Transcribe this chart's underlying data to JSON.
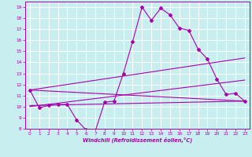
{
  "xlabel": "Windchill (Refroidissement éolien,°C)",
  "background_color": "#c8eef0",
  "grid_color": "#ffffff",
  "line_color": "#aa00aa",
  "xlim": [
    -0.5,
    23.5
  ],
  "ylim": [
    8,
    19.5
  ],
  "xticks": [
    0,
    1,
    2,
    3,
    4,
    5,
    6,
    7,
    8,
    9,
    10,
    11,
    12,
    13,
    14,
    15,
    16,
    17,
    18,
    19,
    20,
    21,
    22,
    23
  ],
  "yticks": [
    8,
    9,
    10,
    11,
    12,
    13,
    14,
    15,
    16,
    17,
    18,
    19
  ],
  "line1_x": [
    0,
    1,
    2,
    3,
    4,
    5,
    6,
    7,
    8,
    9,
    10,
    11,
    12,
    13,
    14,
    15,
    16,
    17,
    18,
    19,
    20,
    21,
    22,
    23
  ],
  "line1_y": [
    11.5,
    9.9,
    10.1,
    10.2,
    10.2,
    8.8,
    7.9,
    7.8,
    10.4,
    10.5,
    13.0,
    15.9,
    19.0,
    17.8,
    18.9,
    18.3,
    17.1,
    16.9,
    15.2,
    14.3,
    12.5,
    11.1,
    11.2,
    10.5
  ],
  "line2_x": [
    0,
    23
  ],
  "line2_y": [
    11.5,
    10.5
  ],
  "line3_x": [
    0,
    23
  ],
  "line3_y": [
    11.5,
    14.4
  ],
  "line4_x": [
    0,
    23
  ],
  "line4_y": [
    10.1,
    10.5
  ],
  "line5_x": [
    0,
    23
  ],
  "line5_y": [
    10.0,
    12.4
  ]
}
